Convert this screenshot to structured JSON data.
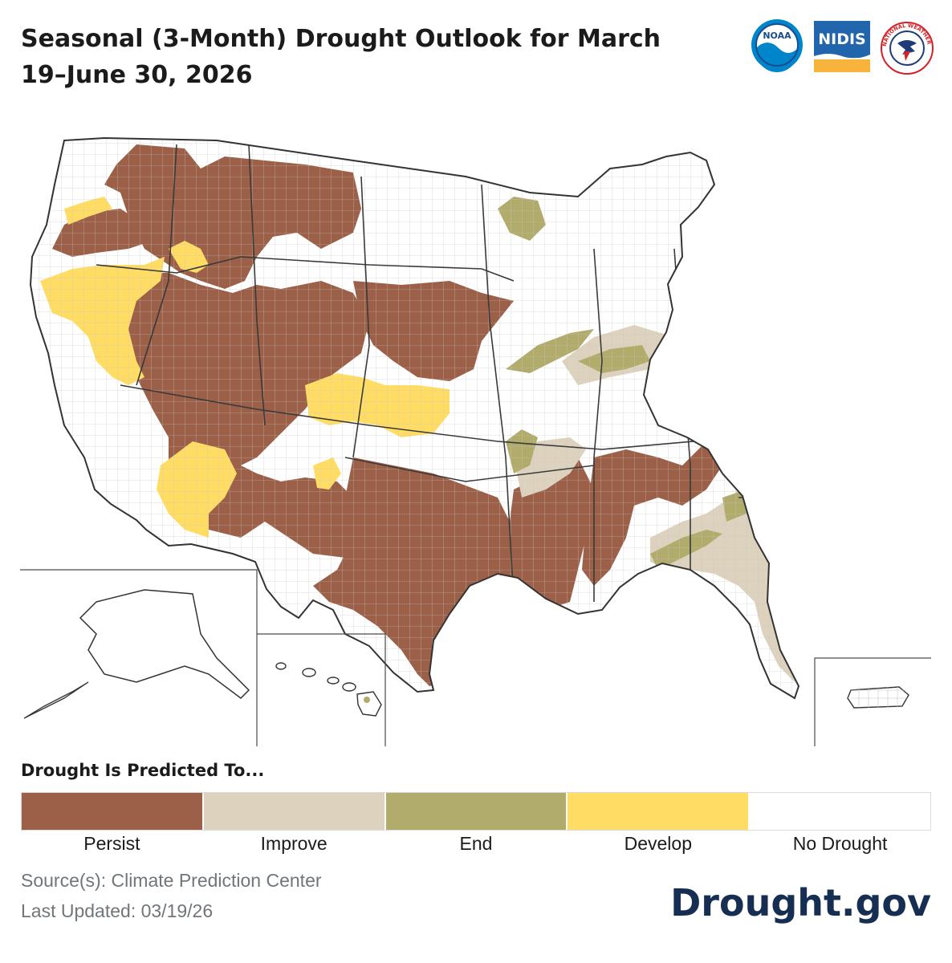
{
  "header": {
    "title_line1": "Seasonal (3-Month) Drought Outlook for March",
    "title_line2": "19–June 30, 2026"
  },
  "logos": {
    "noaa": "NOAA",
    "nidis": "NIDIS",
    "nws": "NATIONAL WEATHER SERVICE"
  },
  "legend": {
    "title": "Drought Is Predicted To...",
    "items": [
      {
        "label": "Persist",
        "color": "#9c5f47"
      },
      {
        "label": "Improve",
        "color": "#ddd2be"
      },
      {
        "label": "End",
        "color": "#b2ac6c"
      },
      {
        "label": "Develop",
        "color": "#ffdd65"
      },
      {
        "label": "No Drought",
        "color": "#ffffff"
      }
    ]
  },
  "footer": {
    "source": "Source(s): Climate Prediction Center",
    "updated": "Last Updated: 03/19/26",
    "site": "Drought.gov"
  }
}
